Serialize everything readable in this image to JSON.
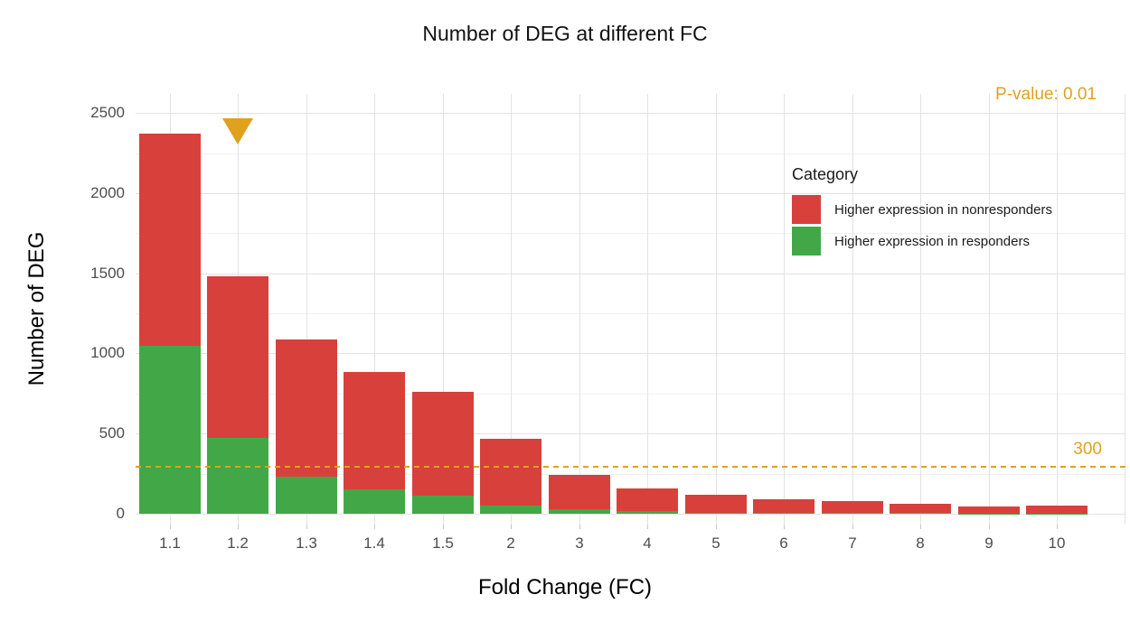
{
  "chart_data": {
    "type": "bar",
    "stacked": true,
    "title": "Number of DEG at different FC",
    "xlabel": "Fold Change (FC)",
    "ylabel": "Number of DEG",
    "categories": [
      "1.1",
      "1.2",
      "1.3",
      "1.4",
      "1.5",
      "2",
      "3",
      "4",
      "5",
      "6",
      "7",
      "8",
      "9",
      "10"
    ],
    "series": [
      {
        "name": "Higher expression in nonresponders",
        "color": "#d8403c",
        "values": [
          1320,
          1005,
          855,
          735,
          645,
          415,
          215,
          145,
          112,
          84,
          73,
          57,
          43,
          46
        ]
      },
      {
        "name": "Higher expression in responders",
        "color": "#42a847",
        "values": [
          1050,
          475,
          230,
          150,
          115,
          50,
          25,
          15,
          8,
          6,
          5,
          3,
          2,
          2
        ]
      }
    ],
    "legend_title": "Category",
    "y_ticks": [
      0,
      500,
      1000,
      1500,
      2000,
      2500
    ],
    "y_minor_ticks": [
      250,
      750,
      1250,
      1750,
      2250
    ],
    "ylim_panel": [
      -68,
      2620
    ],
    "grid": true,
    "legend_position": "inside-top-right",
    "annotations": {
      "pvalue_label": "P-value: 0.01",
      "hline_value": 300,
      "hline_label": "300",
      "marker": {
        "category": "1.2",
        "value": 2390,
        "shape": "triangle-down"
      }
    },
    "colors": {
      "accent_gold": "#dfa11e",
      "grid_major": "#e3e3e3",
      "grid_minor": "#f0f0f0",
      "axis_text": "#4d4d4d"
    }
  }
}
